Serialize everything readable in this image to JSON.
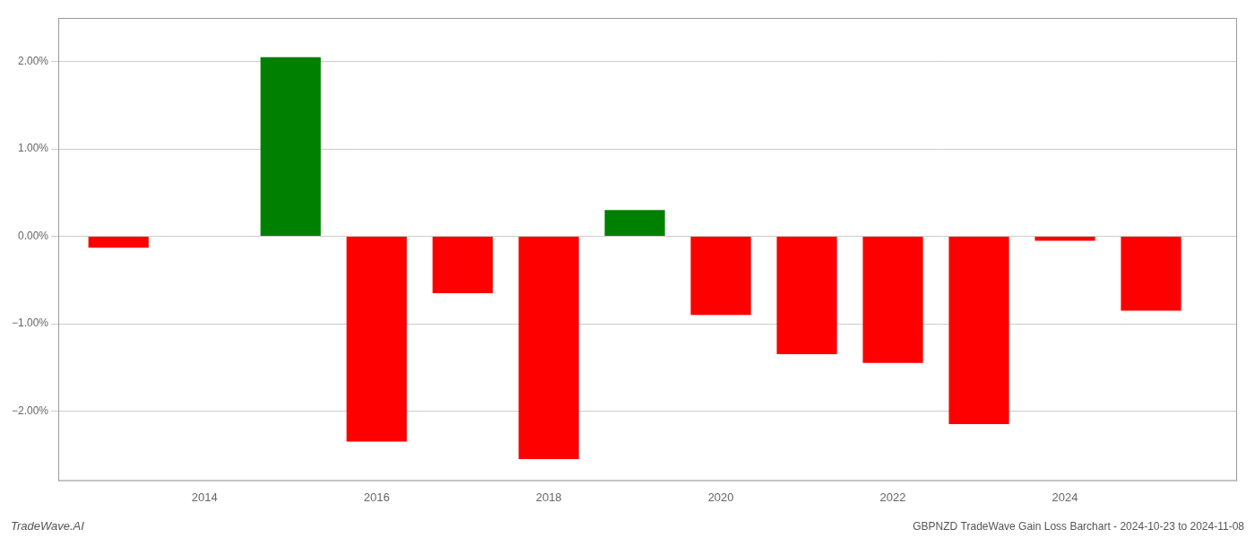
{
  "chart_data": {
    "type": "bar",
    "x": [
      2013,
      2015,
      2016,
      2017,
      2018,
      2019,
      2020,
      2021,
      2022,
      2023,
      2024,
      2025
    ],
    "values": [
      -0.0013,
      0.0205,
      -0.0235,
      -0.0065,
      -0.0255,
      0.003,
      -0.009,
      -0.0135,
      -0.0145,
      -0.0215,
      -0.0005,
      -0.0085
    ],
    "colors": [
      "#ff0000",
      "#008000",
      "#ff0000",
      "#ff0000",
      "#ff0000",
      "#008000",
      "#ff0000",
      "#ff0000",
      "#ff0000",
      "#ff0000",
      "#ff0000",
      "#ff0000"
    ],
    "xlim": [
      2012.3,
      2026.0
    ],
    "xticks": [
      2014,
      2016,
      2018,
      2020,
      2022,
      2024
    ],
    "ylim": [
      -0.028,
      0.025
    ],
    "yticks": [
      {
        "value": -0.02,
        "label": "−2.00%"
      },
      {
        "value": -0.01,
        "label": "−1.00%"
      },
      {
        "value": 0,
        "label": "0.00%"
      },
      {
        "value": 0.01,
        "label": "1.00%"
      },
      {
        "value": 0.02,
        "label": "2.00%"
      }
    ],
    "grid": true,
    "annotations": [
      "TradeWave.AI",
      "GBPNZD TradeWave Gain Loss Barchart - 2024-10-23 to 2024-11-08"
    ]
  }
}
